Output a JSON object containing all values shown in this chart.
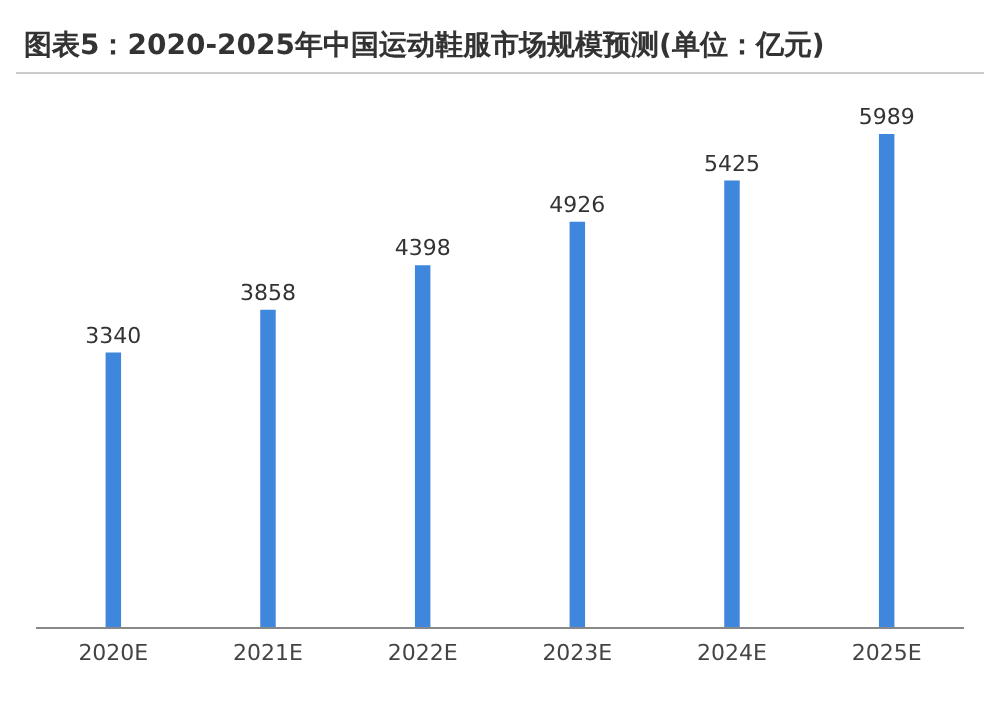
{
  "chart_data": {
    "type": "bar",
    "title": "图表5：2020-2025年中国运动鞋服市场规模预测(单位：亿元)",
    "categories": [
      "2020E",
      "2021E",
      "2022E",
      "2023E",
      "2024E",
      "2025E"
    ],
    "values": [
      3340,
      3858,
      4398,
      4926,
      5425,
      5989
    ],
    "color": "#3f87dc",
    "data_labels": true
  }
}
